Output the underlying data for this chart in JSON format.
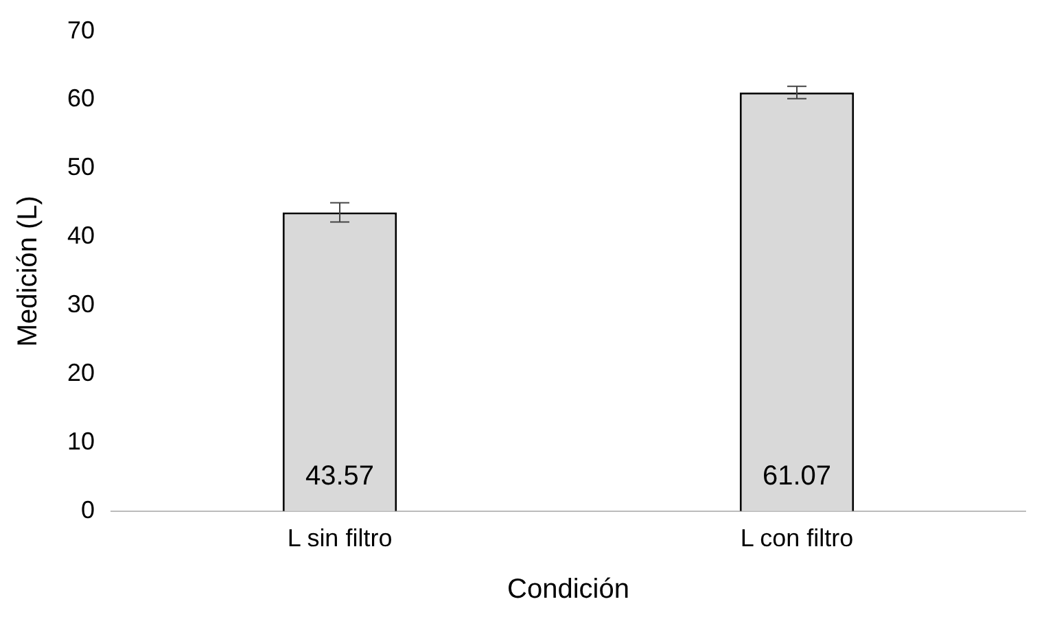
{
  "chart_data": {
    "type": "bar",
    "xlabel": "Condición",
    "ylabel": "Medición (L)",
    "categories": [
      "L sin filtro",
      "L con filtro"
    ],
    "values": [
      43.57,
      61.07
    ],
    "errors": [
      1.4,
      0.9
    ],
    "color": "#d9d9d9",
    "ylim": [
      0,
      70
    ],
    "yticks": [
      0,
      10,
      20,
      30,
      40,
      50,
      60,
      70
    ],
    "data_labels": true,
    "grid": false,
    "legend": false
  }
}
